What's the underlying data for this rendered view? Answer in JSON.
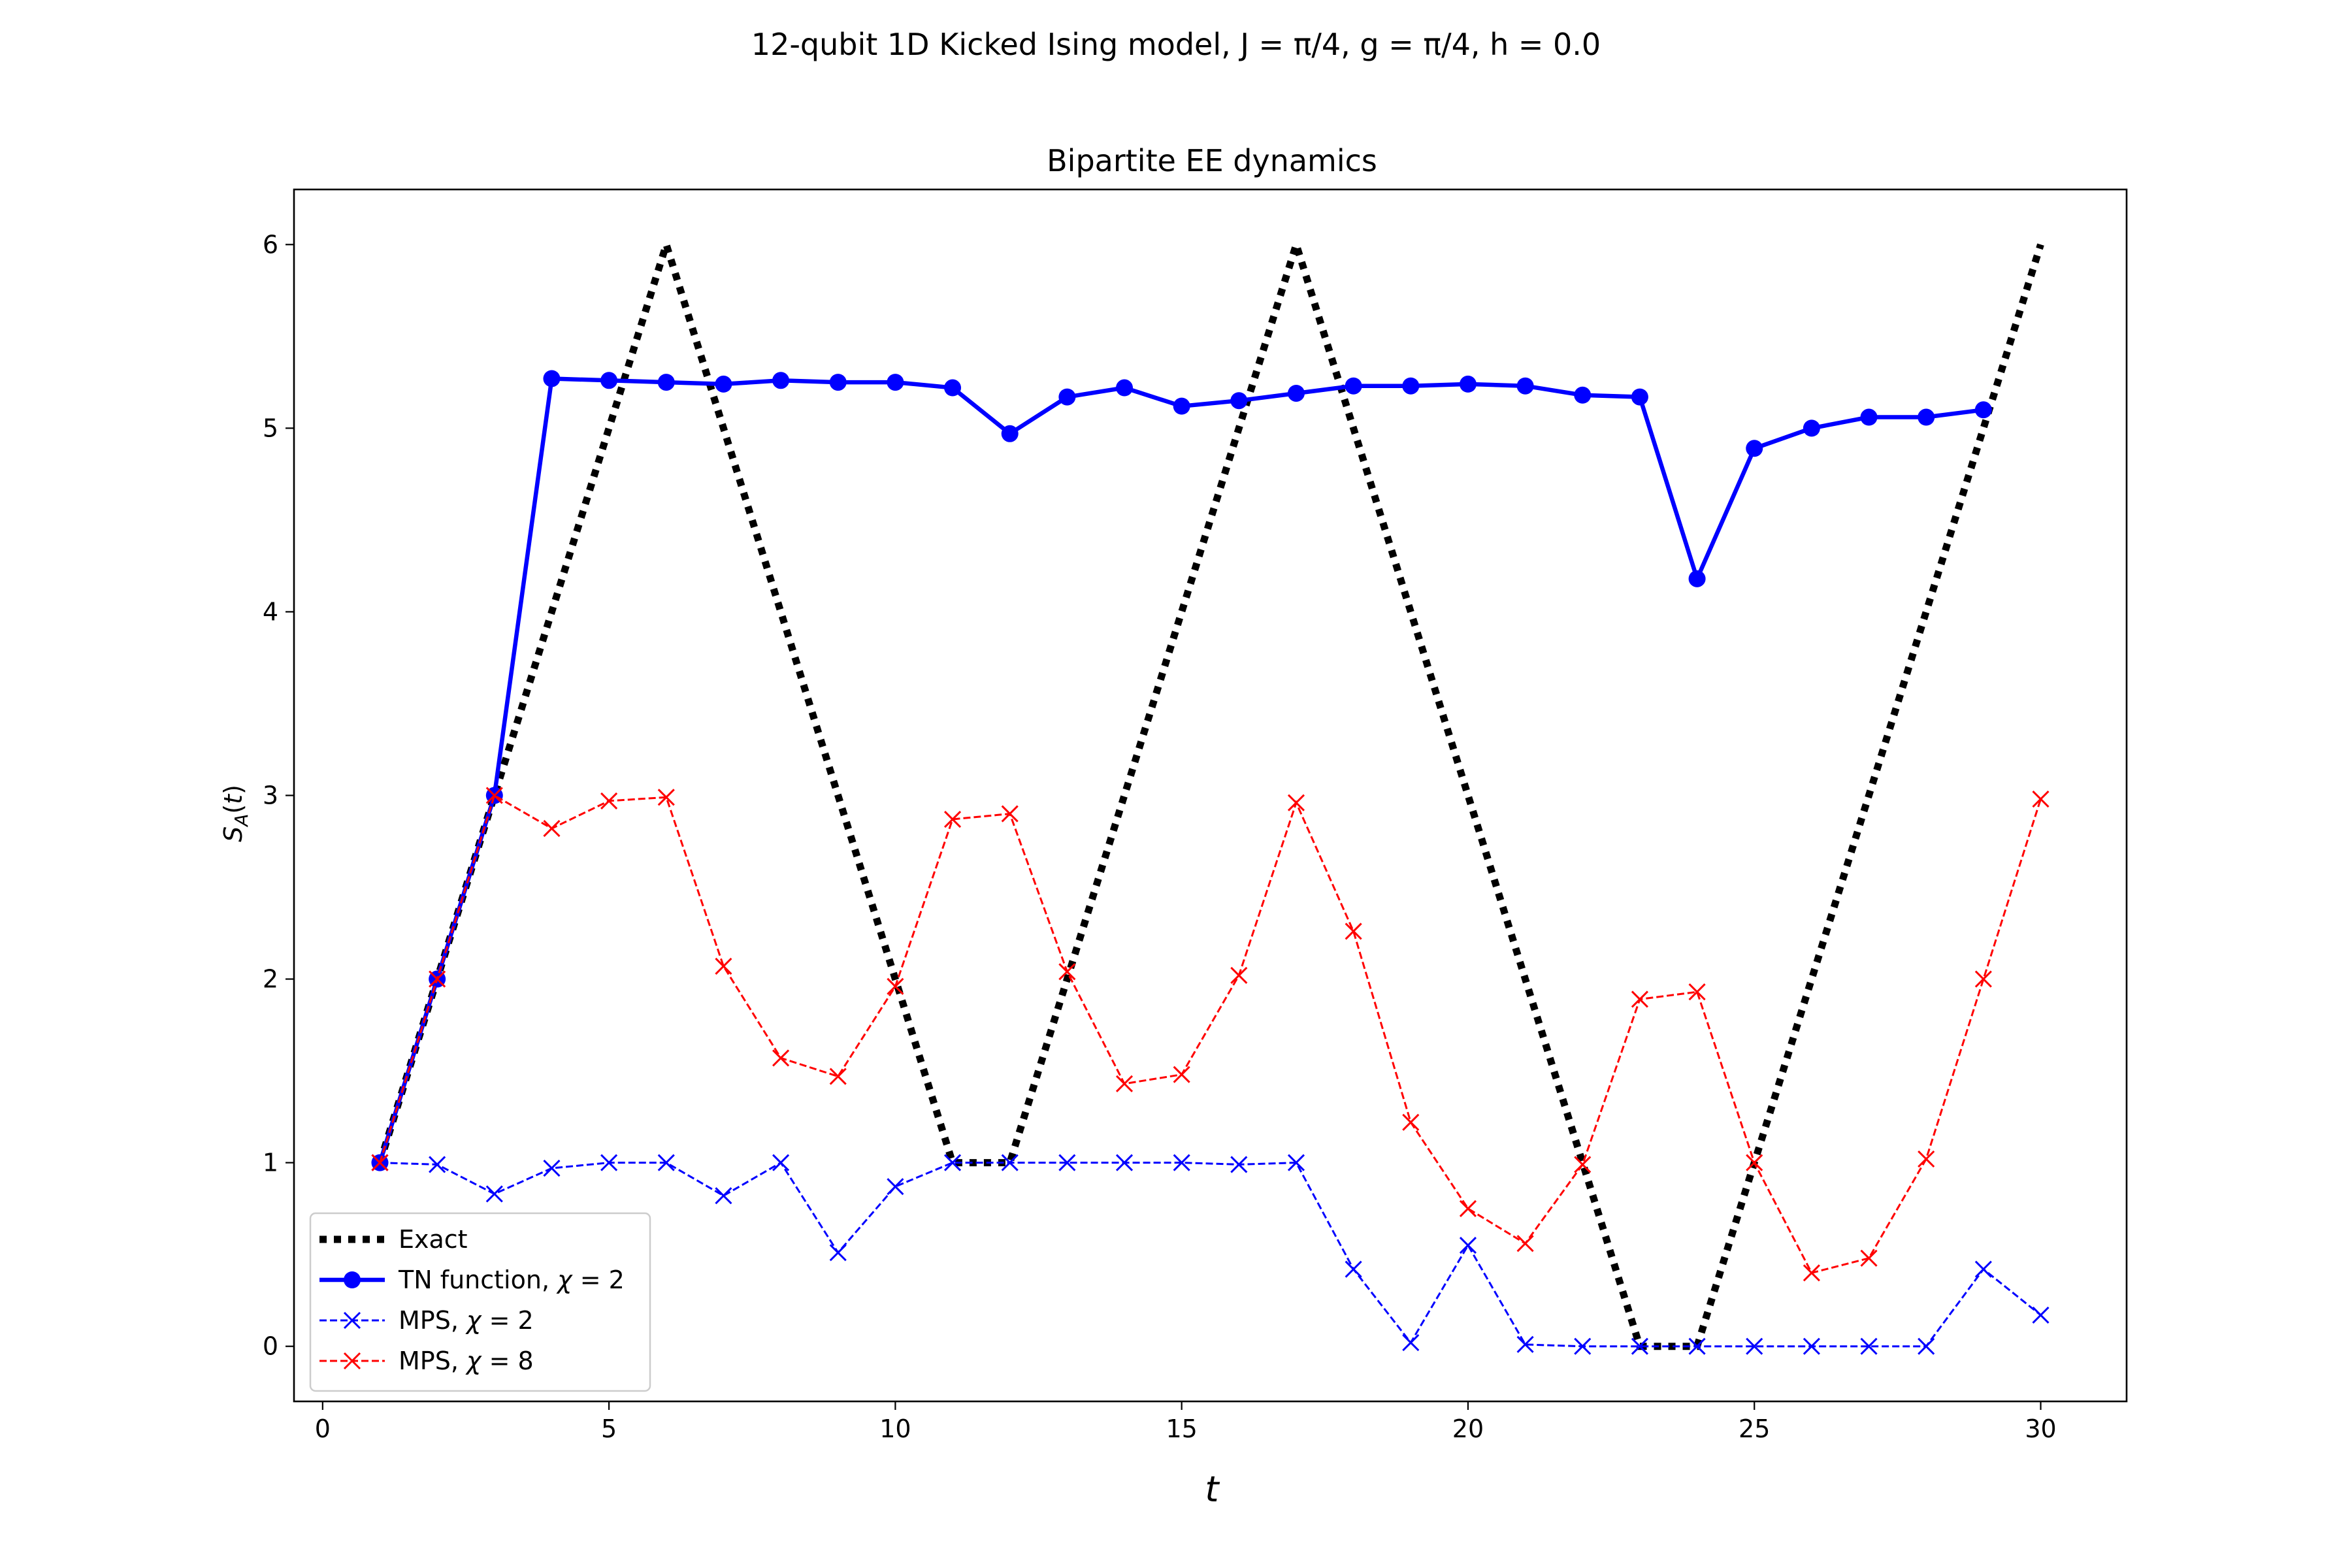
{
  "chart_data": {
    "type": "line",
    "suptitle": "12-qubit 1D Kicked Ising model, J = π/4, g = π/4, h = 0.0",
    "title": "Bipartite EE dynamics",
    "xlabel": "t",
    "ylabel": "S_A(t)",
    "xlim": [
      -0.5,
      31.5
    ],
    "ylim": [
      -0.3,
      6.3
    ],
    "xticks": [
      0,
      5,
      10,
      15,
      20,
      25,
      30
    ],
    "yticks": [
      0,
      1,
      2,
      3,
      4,
      5,
      6
    ],
    "grid": false,
    "legend_position": "lower-left",
    "series": [
      {
        "name": "Exact",
        "color": "#000000",
        "style": "dotted",
        "marker": "none",
        "x": [
          1,
          2,
          3,
          4,
          5,
          6,
          7,
          8,
          9,
          10,
          11,
          12,
          13,
          14,
          15,
          16,
          17,
          18,
          19,
          20,
          21,
          22,
          23,
          24,
          25,
          26,
          27,
          28,
          29,
          30
        ],
        "y": [
          1,
          2,
          3,
          4,
          5,
          6,
          5,
          4,
          3,
          2,
          1,
          1,
          2,
          3,
          4,
          5,
          6,
          5,
          4,
          3,
          2,
          1,
          0,
          0,
          1,
          2,
          3,
          4,
          5,
          6
        ]
      },
      {
        "name": "TN function, χ = 2",
        "color": "#0000ff",
        "style": "solid",
        "marker": "circle",
        "x": [
          1,
          2,
          3,
          4,
          5,
          6,
          7,
          8,
          9,
          10,
          11,
          12,
          13,
          14,
          15,
          16,
          17,
          18,
          19,
          20,
          21,
          22,
          23,
          24,
          25,
          26,
          27,
          28,
          29
        ],
        "y": [
          1.0,
          2.0,
          3.0,
          5.27,
          5.26,
          5.25,
          5.24,
          5.26,
          5.25,
          5.25,
          5.22,
          4.97,
          5.17,
          5.22,
          5.12,
          5.15,
          5.19,
          5.23,
          5.23,
          5.24,
          5.23,
          5.18,
          5.17,
          4.18,
          4.89,
          5.0,
          5.06,
          5.06,
          5.1
        ]
      },
      {
        "name": "MPS, χ = 2",
        "color": "#0000ff",
        "style": "dashed",
        "marker": "x",
        "x": [
          1,
          2,
          3,
          4,
          5,
          6,
          7,
          8,
          9,
          10,
          11,
          12,
          13,
          14,
          15,
          16,
          17,
          18,
          19,
          20,
          21,
          22,
          23,
          24,
          25,
          26,
          27,
          28,
          29,
          30
        ],
        "y": [
          1.0,
          0.99,
          0.83,
          0.97,
          1.0,
          1.0,
          0.82,
          1.0,
          0.51,
          0.87,
          1.0,
          1.0,
          1.0,
          1.0,
          1.0,
          0.99,
          1.0,
          0.42,
          0.02,
          0.55,
          0.01,
          0.0,
          0.0,
          0.0,
          0.0,
          0.0,
          0.0,
          0.0,
          0.42,
          0.17
        ]
      },
      {
        "name": "MPS, χ = 8",
        "color": "#ff0000",
        "style": "dashed",
        "marker": "x",
        "x": [
          1,
          2,
          3,
          4,
          5,
          6,
          7,
          8,
          9,
          10,
          11,
          12,
          13,
          14,
          15,
          16,
          17,
          18,
          19,
          20,
          21,
          22,
          23,
          24,
          25,
          26,
          27,
          28,
          29,
          30
        ],
        "y": [
          1.0,
          2.0,
          3.0,
          2.82,
          2.97,
          2.99,
          2.07,
          1.57,
          1.47,
          1.96,
          2.87,
          2.9,
          2.04,
          1.43,
          1.48,
          2.02,
          2.96,
          2.26,
          1.22,
          0.75,
          0.56,
          0.99,
          1.89,
          1.93,
          1.0,
          0.4,
          0.48,
          1.02,
          2.0,
          2.98
        ]
      }
    ]
  }
}
